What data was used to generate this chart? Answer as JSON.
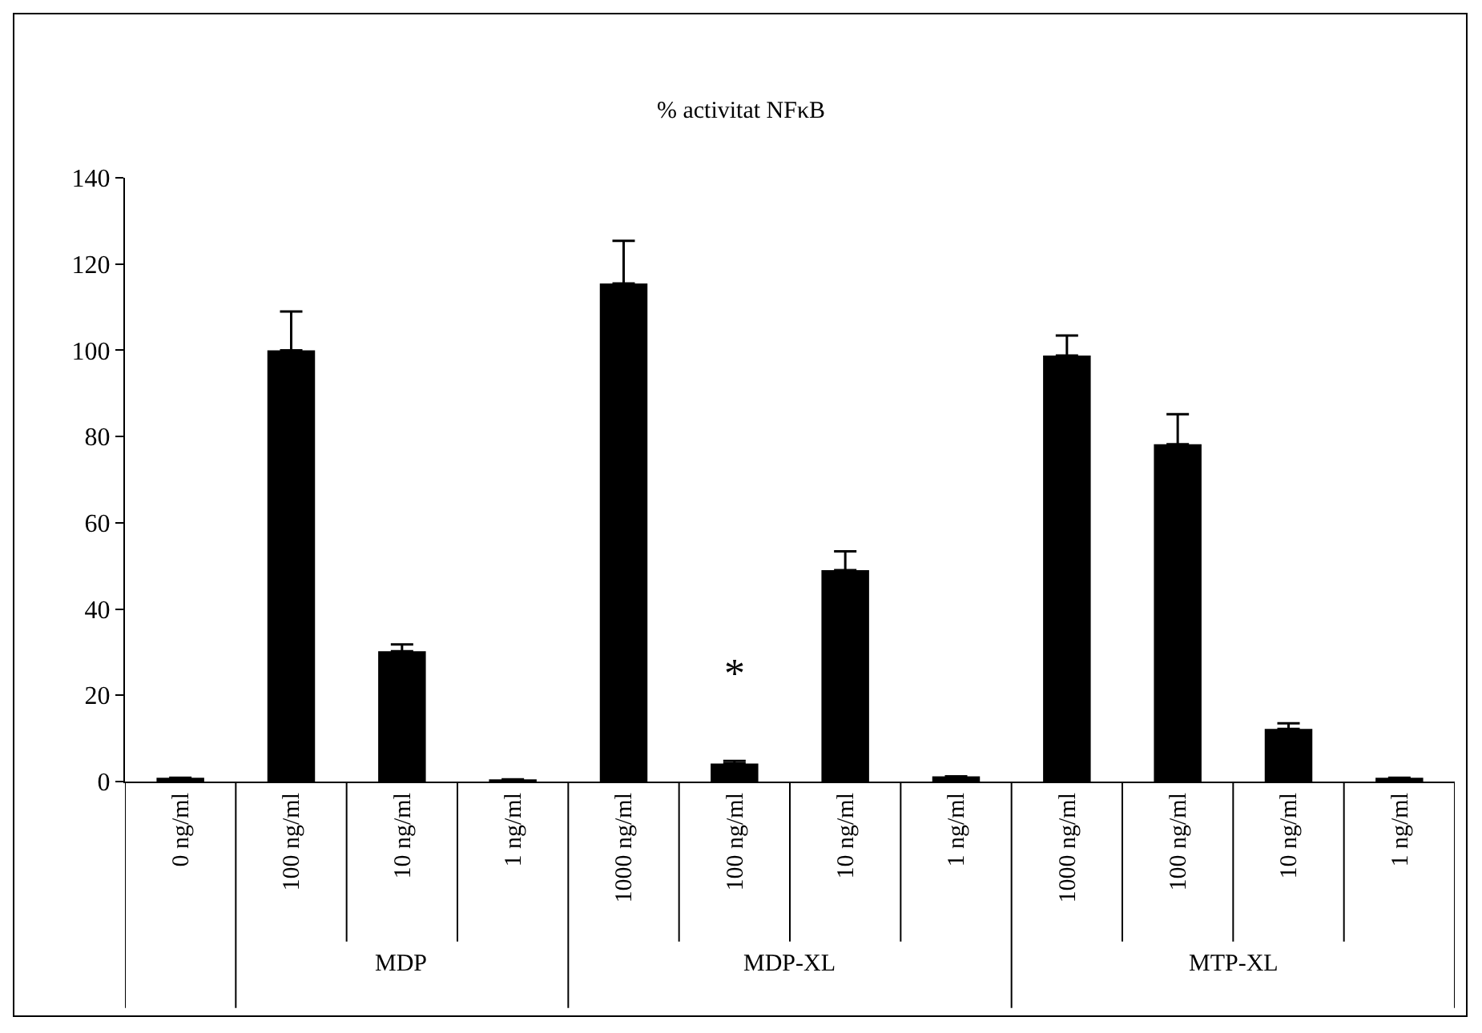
{
  "chart_data": {
    "type": "bar",
    "title": "% activitat NFκB",
    "categories": [
      "0 ng/ml",
      "100 ng/ml",
      "10 ng/ml",
      "1 ng/ml",
      "1000 ng/ml",
      "100 ng/ml",
      "10 ng/ml",
      "1 ng/ml",
      "1000 ng/ml",
      "100 ng/ml",
      "10 ng/ml",
      "1 ng/ml"
    ],
    "values": [
      0.9,
      100,
      30.2,
      0.5,
      115.5,
      4.2,
      49,
      1.2,
      98.8,
      78.2,
      12.2,
      0.9
    ],
    "errors": [
      null,
      [
        100,
        109
      ],
      [
        30.2,
        31.8
      ],
      null,
      [
        115.5,
        125.4
      ],
      [
        4.2,
        4.8
      ],
      [
        49,
        53.4
      ],
      null,
      [
        98.8,
        103.4
      ],
      [
        78.2,
        85.2
      ],
      [
        12.2,
        13.5
      ],
      null
    ],
    "color": "#000000",
    "ylim": [
      0,
      140
    ],
    "yticks": [
      0,
      20,
      40,
      60,
      80,
      100,
      120,
      140
    ],
    "grid": false,
    "annotations": [
      "*",
      "MDP",
      "MDP-XL",
      "MTP-XL"
    ]
  }
}
